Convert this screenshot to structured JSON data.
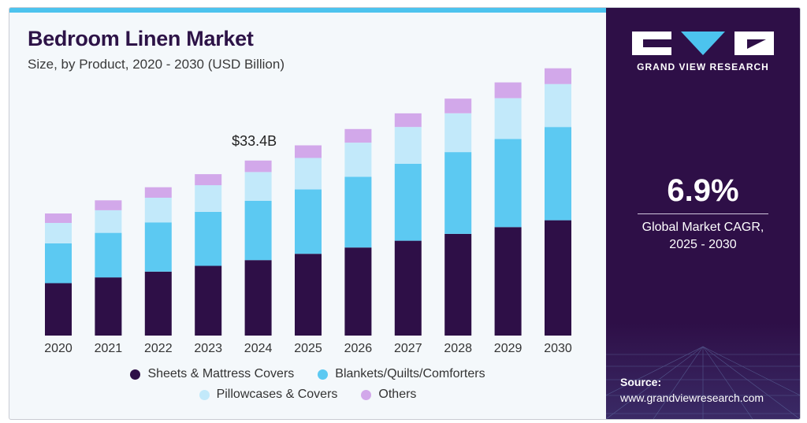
{
  "header": {
    "title": "Bedroom Linen Market",
    "subtitle": "Size, by Product, 2020 - 2030 (USD Billion)"
  },
  "annotation": {
    "label": "$33.4B",
    "year": "2024"
  },
  "brand": {
    "name": "GRAND VIEW RESEARCH"
  },
  "stats": {
    "cagr_value": "6.9%",
    "cagr_label_line1": "Global Market CAGR,",
    "cagr_label_line2": "2025 - 2030"
  },
  "source": {
    "label": "Source:",
    "url": "www.grandviewresearch.com"
  },
  "colors": {
    "primary": "#2e0f47",
    "sheets": "#2e0f47",
    "blankets": "#5cc9f2",
    "pillowcases": "#c2e9fa",
    "others": "#d2a8ea",
    "accent_bar": "#4cc3ee"
  },
  "chart_data": {
    "type": "bar",
    "stacked": true,
    "categories": [
      "2020",
      "2021",
      "2022",
      "2023",
      "2024",
      "2025",
      "2026",
      "2027",
      "2028",
      "2029",
      "2030"
    ],
    "series": [
      {
        "name": "Sheets & Mattress Covers",
        "color": "#2e0f47",
        "values": [
          10.0,
          11.1,
          12.2,
          13.3,
          14.4,
          15.6,
          16.8,
          18.1,
          19.4,
          20.7,
          22.0
        ]
      },
      {
        "name": "Blankets/Quilts/Comforters",
        "color": "#5cc9f2",
        "values": [
          7.6,
          8.5,
          9.4,
          10.3,
          11.3,
          12.3,
          13.5,
          14.7,
          15.6,
          16.8,
          17.8
        ]
      },
      {
        "name": "Pillowcases & Covers",
        "color": "#c2e9fa",
        "values": [
          3.9,
          4.3,
          4.7,
          5.1,
          5.5,
          6.0,
          6.5,
          7.0,
          7.4,
          7.8,
          8.2
        ]
      },
      {
        "name": "Others",
        "color": "#d2a8ea",
        "values": [
          1.8,
          1.9,
          2.0,
          2.1,
          2.2,
          2.4,
          2.6,
          2.6,
          2.8,
          3.0,
          3.0
        ]
      }
    ],
    "ylim": [
      0,
      52
    ],
    "grid": false,
    "legend_position": "bottom"
  }
}
